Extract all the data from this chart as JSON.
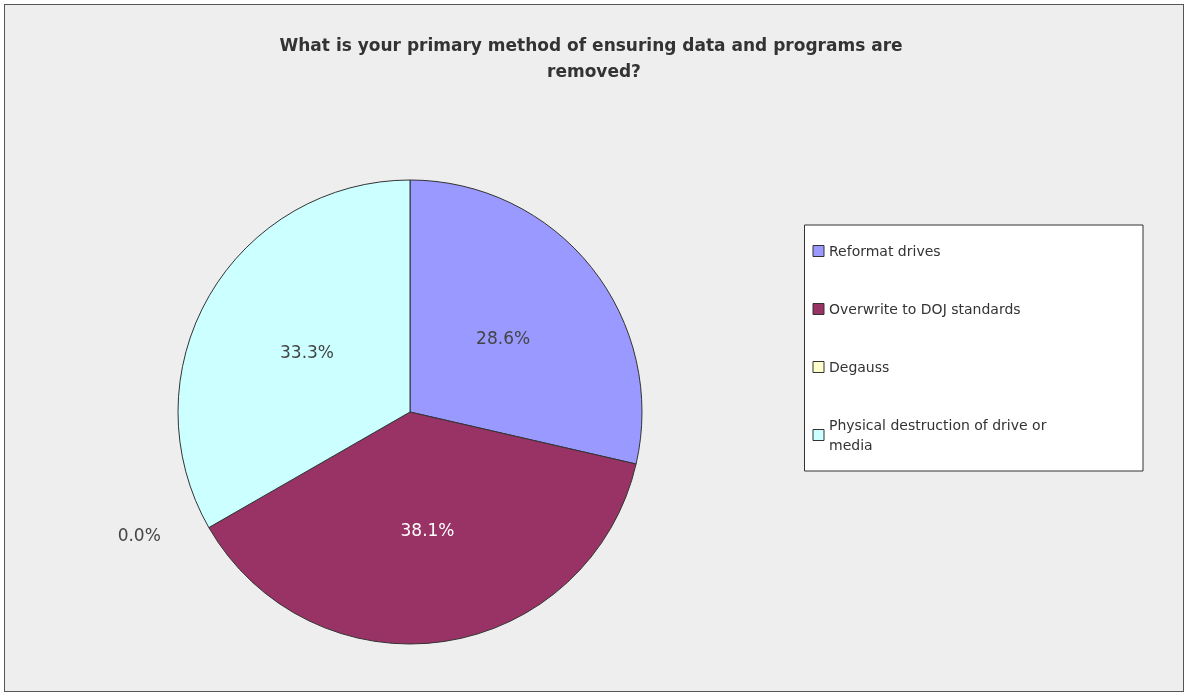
{
  "chart_data": {
    "type": "pie",
    "title": "What is your primary method of ensuring data and programs are removed?",
    "categories": [
      "Reformat drives",
      "Overwrite to DOJ standards",
      "Degauss",
      "Physical destruction of drive or media"
    ],
    "values": [
      28.6,
      38.1,
      0.0,
      33.3
    ],
    "colors": [
      "#9999ff",
      "#993366",
      "#ffffcc",
      "#ccffff"
    ],
    "value_labels": [
      "28.6%",
      "38.1%",
      "0.0%",
      "33.3%"
    ],
    "legend": "right"
  }
}
